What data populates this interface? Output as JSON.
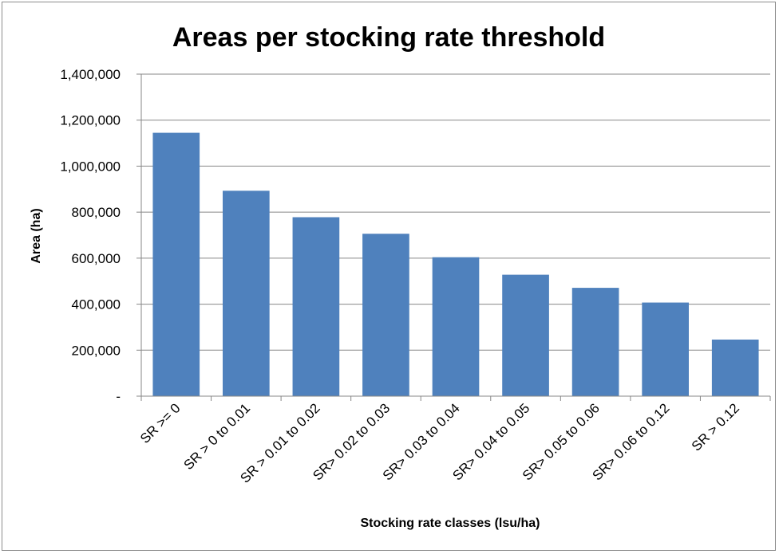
{
  "chart_data": {
    "type": "bar",
    "title": "Areas per stocking rate threshold",
    "xlabel": "Stocking rate classes (lsu/ha)",
    "ylabel": "Area (ha)",
    "categories": [
      "SR >= 0",
      "SR > 0 to 0.01",
      "SR > 0.01 to 0.02",
      "SR> 0.02 to 0.03",
      "SR> 0.03 to 0.04",
      "SR> 0.04 to 0.05",
      "SR> 0.05 to 0.06",
      "SR> 0.06 to 0.12",
      "SR > 0.12"
    ],
    "values": [
      1145000,
      893000,
      778000,
      706000,
      604000,
      528000,
      471000,
      407000,
      246000
    ],
    "ylim": [
      0,
      1400000
    ],
    "yticks": [
      0,
      200000,
      400000,
      600000,
      800000,
      1000000,
      1200000,
      1400000
    ],
    "ytick_labels": [
      "-",
      "200,000",
      "400,000",
      "600,000",
      "800,000",
      "1,000,000",
      "1,200,000",
      "1,400,000"
    ],
    "grid": true,
    "legend": "none",
    "bar_color": "#4f81bd",
    "grid_color": "#878787"
  }
}
